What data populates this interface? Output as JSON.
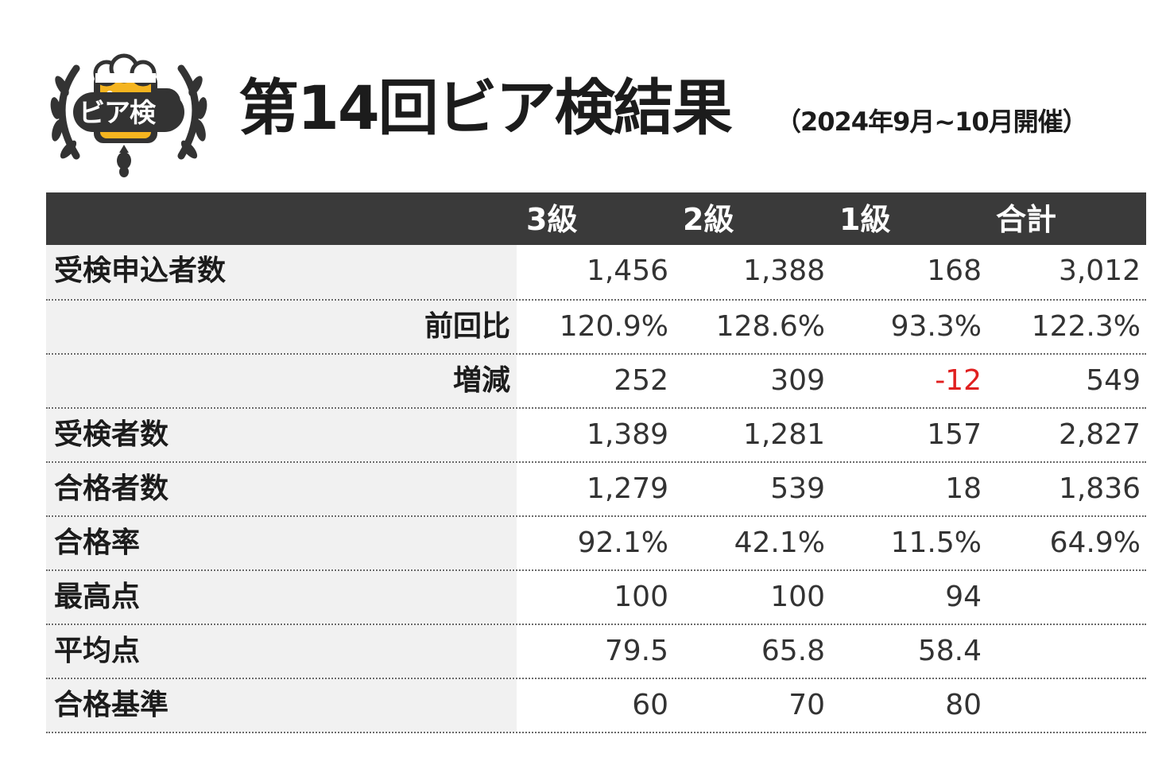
{
  "logo": {
    "text": "ビア検",
    "icon": "beer-mug-wheat-hop-logo",
    "colors": {
      "beer": "#f5b41f",
      "foam": "#ffffff",
      "dark": "#333333"
    }
  },
  "title": "第14回ビア検結果",
  "subtitle": "（2024年9月~10月開催）",
  "table": {
    "header": [
      "3級",
      "2級",
      "1級",
      "合計"
    ],
    "header_bg": "#3a3a3a",
    "negative_color": "#e02020",
    "rows": [
      {
        "label": "受検申込者数",
        "values": [
          "1,456",
          "1,388",
          "168",
          "3,012"
        ]
      },
      {
        "label": "前回比",
        "values": [
          "120.9%",
          "128.6%",
          "93.3%",
          "122.3%"
        ]
      },
      {
        "label": "増減",
        "values": [
          "252",
          "309",
          "-12",
          "549"
        ]
      },
      {
        "label": "受検者数",
        "values": [
          "1,389",
          "1,281",
          "157",
          "2,827"
        ]
      },
      {
        "label": "合格者数",
        "values": [
          "1,279",
          "539",
          "18",
          "1,836"
        ]
      },
      {
        "label": "合格率",
        "values": [
          "92.1%",
          "42.1%",
          "11.5%",
          "64.9%"
        ]
      },
      {
        "label": "最高点",
        "values": [
          "100",
          "100",
          "94",
          ""
        ]
      },
      {
        "label": "平均点",
        "values": [
          "79.5",
          "65.8",
          "58.4",
          ""
        ]
      },
      {
        "label": "合格基準",
        "values": [
          "60",
          "70",
          "80",
          ""
        ]
      }
    ]
  }
}
